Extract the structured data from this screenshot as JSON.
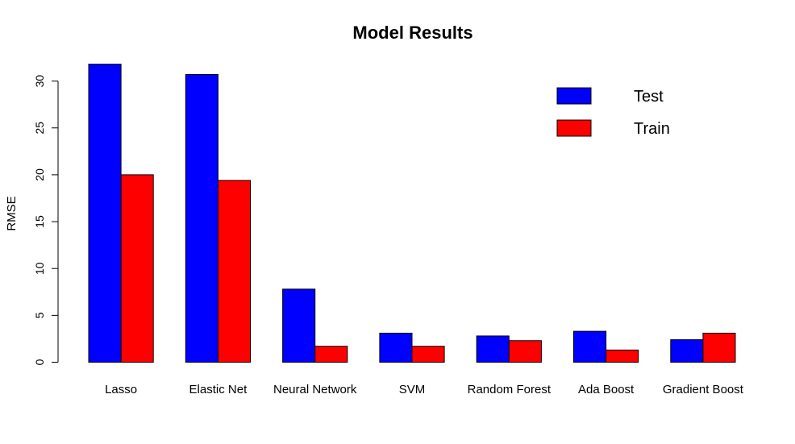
{
  "chart_data": {
    "type": "bar",
    "title": "Model Results",
    "xlabel": "",
    "ylabel": "RMSE",
    "categories": [
      "Lasso",
      "Elastic Net",
      "Neural Network",
      "SVM",
      "Random Forest",
      "Ada Boost",
      "Gradient Boost"
    ],
    "series": [
      {
        "name": "Test",
        "color": "#0000ff",
        "values": [
          31.8,
          30.7,
          7.8,
          3.1,
          2.8,
          3.3,
          2.4
        ]
      },
      {
        "name": "Train",
        "color": "#ff0000",
        "values": [
          20.0,
          19.4,
          1.7,
          1.7,
          2.3,
          1.3,
          3.1
        ]
      }
    ],
    "ylim": [
      0,
      32
    ],
    "yticks": [
      0,
      5,
      10,
      15,
      20,
      25,
      30
    ],
    "grid": false,
    "legend_position": "top-right"
  }
}
